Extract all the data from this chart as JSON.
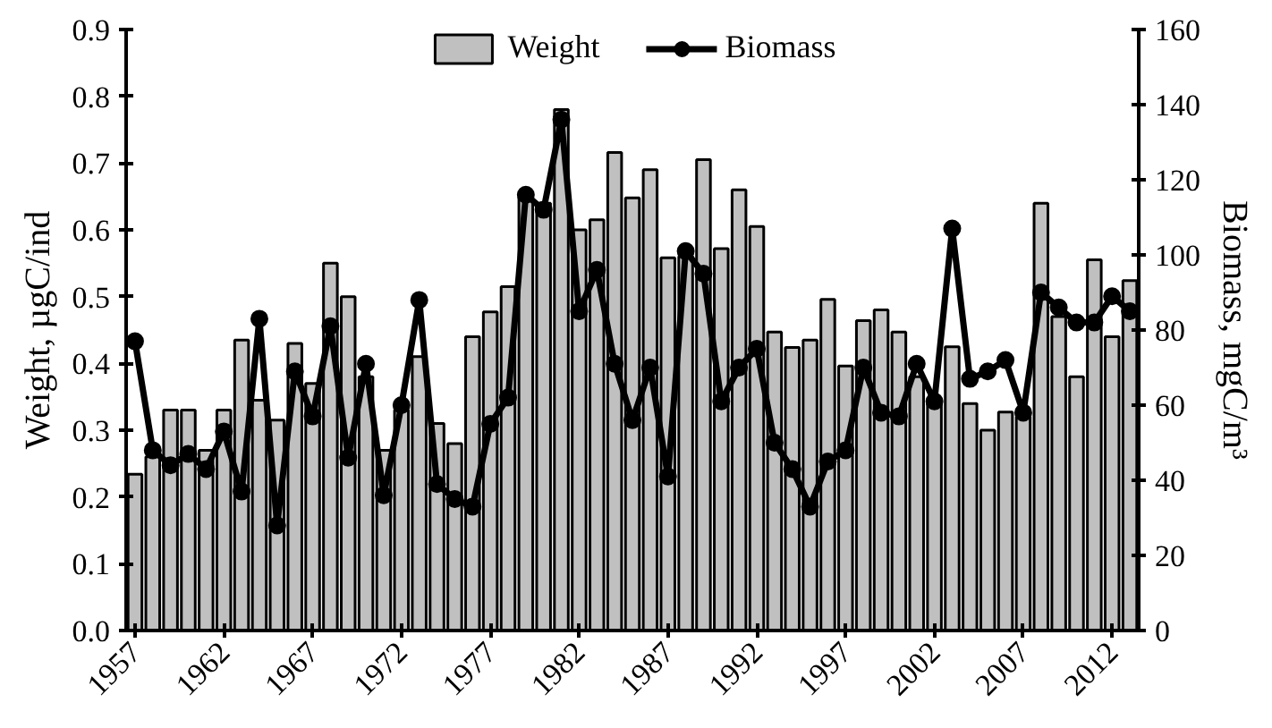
{
  "chart_data": {
    "type": "bar",
    "xlabel": null,
    "ylabel": "Weight, µgC/ind",
    "y2label": "Biomass, mgC/m³",
    "x": [
      1957,
      1958,
      1959,
      1960,
      1961,
      1962,
      1963,
      1964,
      1965,
      1966,
      1967,
      1968,
      1969,
      1970,
      1971,
      1972,
      1973,
      1974,
      1975,
      1976,
      1977,
      1978,
      1979,
      1980,
      1981,
      1982,
      1983,
      1984,
      1985,
      1986,
      1987,
      1988,
      1989,
      1990,
      1991,
      1992,
      1993,
      1994,
      1995,
      1996,
      1997,
      1998,
      1999,
      2000,
      2001,
      2002,
      2003,
      2004,
      2005,
      2006,
      2007,
      2008,
      2009,
      2010,
      2011,
      2012,
      2013
    ],
    "series": [
      {
        "name": "Weight",
        "color": "#c0c0c0",
        "values": [
          0.234,
          0.26,
          0.33,
          0.33,
          0.27,
          0.33,
          0.435,
          0.345,
          0.315,
          0.43,
          0.37,
          0.55,
          0.5,
          0.38,
          0.27,
          0.33,
          0.41,
          0.31,
          0.28,
          0.44,
          0.477,
          0.515,
          0.65,
          0.64,
          0.78,
          0.6,
          0.615,
          0.716,
          0.648,
          0.69,
          0.558,
          0.56,
          0.705,
          0.572,
          0.66,
          0.605,
          0.447,
          0.424,
          0.435,
          0.496,
          0.396,
          0.464,
          0.48,
          0.447,
          0.38,
          0.345,
          0.425,
          0.34,
          0.3,
          0.327,
          0.32,
          0.64,
          0.47,
          0.38,
          0.555,
          0.44,
          0.524
        ]
      },
      {
        "name": "Biomass",
        "type": "line",
        "axis": "y2",
        "color": "#000000",
        "marker": "circle",
        "values": [
          77,
          48,
          44,
          47,
          43,
          53,
          37,
          83,
          28,
          69,
          57,
          81,
          46,
          71,
          36,
          60,
          88,
          39,
          35,
          33,
          55,
          62,
          116,
          112,
          136,
          85,
          96,
          71,
          56,
          70,
          41,
          101,
          95,
          61,
          70,
          75,
          50,
          43,
          33,
          45,
          48,
          70,
          58,
          57,
          71,
          61,
          107,
          67,
          69,
          72,
          58,
          90,
          86,
          82,
          82,
          89,
          85
        ]
      }
    ],
    "xlim": [
      1956.5,
      2013.5
    ],
    "xticks": [
      1957,
      1962,
      1967,
      1972,
      1977,
      1982,
      1987,
      1992,
      1997,
      2002,
      2007,
      2012
    ],
    "ylim": [
      0,
      0.9
    ],
    "yticks": [
      {
        "value": 0,
        "label": "0.0"
      },
      0.1,
      0.2,
      0.3,
      0.4,
      0.5,
      0.6,
      0.7,
      0.8,
      0.9
    ],
    "y2lim": [
      0,
      160
    ],
    "y2ticks": [
      0,
      20,
      40,
      60,
      80,
      100,
      120,
      140,
      160
    ],
    "grid": false,
    "legend": "top"
  }
}
